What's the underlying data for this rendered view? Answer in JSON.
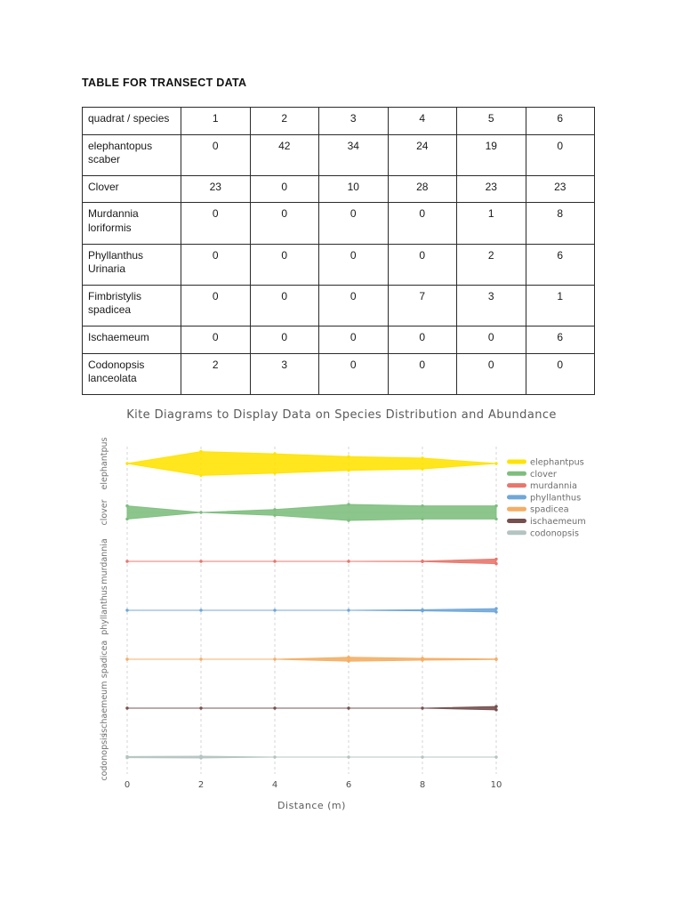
{
  "page": {
    "title": "TABLE FOR TRANSECT DATA"
  },
  "table": {
    "header": [
      "quadrat / species",
      "1",
      "2",
      "3",
      "4",
      "5",
      "6"
    ],
    "rows": [
      {
        "species": "elephantopus scaber",
        "values": [
          0,
          42,
          34,
          24,
          19,
          0
        ]
      },
      {
        "species": "Clover",
        "values": [
          23,
          0,
          10,
          28,
          23,
          23
        ]
      },
      {
        "species": "Murdannia loriformis",
        "values": [
          0,
          0,
          0,
          0,
          1,
          8
        ]
      },
      {
        "species": "Phyllanthus Urinaria",
        "values": [
          0,
          0,
          0,
          0,
          2,
          6
        ]
      },
      {
        "species": "Fimbristylis spadicea",
        "values": [
          0,
          0,
          0,
          7,
          3,
          1
        ]
      },
      {
        "species": "Ischaemeum",
        "values": [
          0,
          0,
          0,
          0,
          0,
          6
        ]
      },
      {
        "species": "Codonopsis lanceolata",
        "values": [
          2,
          3,
          0,
          0,
          0,
          0
        ]
      }
    ]
  },
  "chart_data": {
    "type": "area",
    "variant": "kite-diagram",
    "title": "Kite Diagrams to Display Data on Species Distribution and Abundance",
    "xlabel": "Distance (m)",
    "x": [
      0,
      2,
      4,
      6,
      8,
      10
    ],
    "xlim": [
      0,
      10
    ],
    "x_tick_labels": [
      "0",
      "2",
      "4",
      "6",
      "8",
      "10"
    ],
    "grid": "vertical-dashed",
    "legend_position": "right",
    "series": [
      {
        "name": "elephantpus",
        "color": "#FFE300",
        "values": [
          0,
          42,
          34,
          24,
          19,
          0
        ]
      },
      {
        "name": "clover",
        "color": "#7DBE7D",
        "values": [
          23,
          0,
          10,
          28,
          23,
          23
        ]
      },
      {
        "name": "murdannia",
        "color": "#E8766C",
        "values": [
          0,
          0,
          0,
          0,
          1,
          8
        ]
      },
      {
        "name": "phyllanthus",
        "color": "#6FA7D8",
        "values": [
          0,
          0,
          0,
          0,
          2,
          6
        ]
      },
      {
        "name": "spadicea",
        "color": "#F4AE63",
        "values": [
          0,
          0,
          0,
          7,
          3,
          1
        ]
      },
      {
        "name": "ischaemeum",
        "color": "#74504E",
        "values": [
          0,
          0,
          0,
          0,
          0,
          6
        ]
      },
      {
        "name": "codonopsis",
        "color": "#B4C4C1",
        "values": [
          2,
          3,
          0,
          0,
          0,
          0
        ]
      }
    ]
  }
}
